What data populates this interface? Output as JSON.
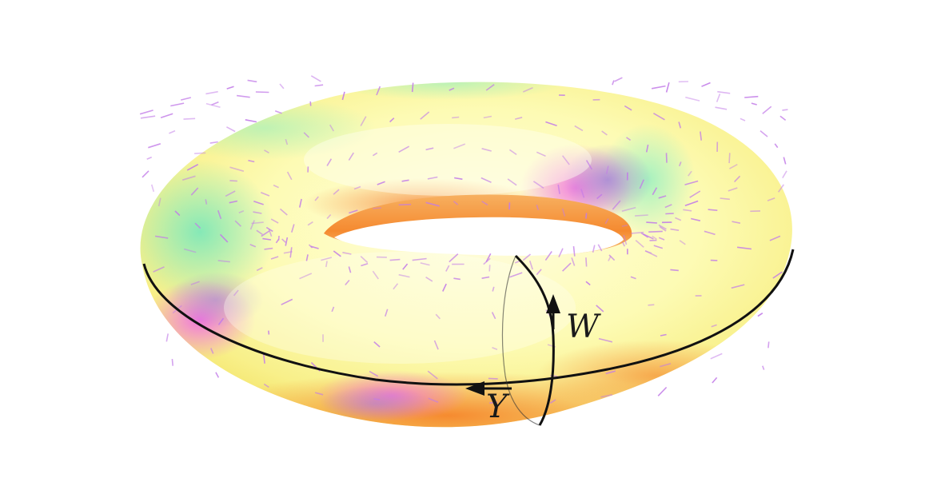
{
  "figure": {
    "labels": {
      "w": "W",
      "y": "Y"
    },
    "colors": {
      "background": "#ffffff",
      "surface_base": "#fdfbb8",
      "surface_green": "#8ff0b8",
      "surface_pink": "#f07ae0",
      "surface_purple": "#a78bdc",
      "surface_orange": "#f57a1f",
      "arrow": "#c27be8",
      "curve": "#111111"
    }
  }
}
